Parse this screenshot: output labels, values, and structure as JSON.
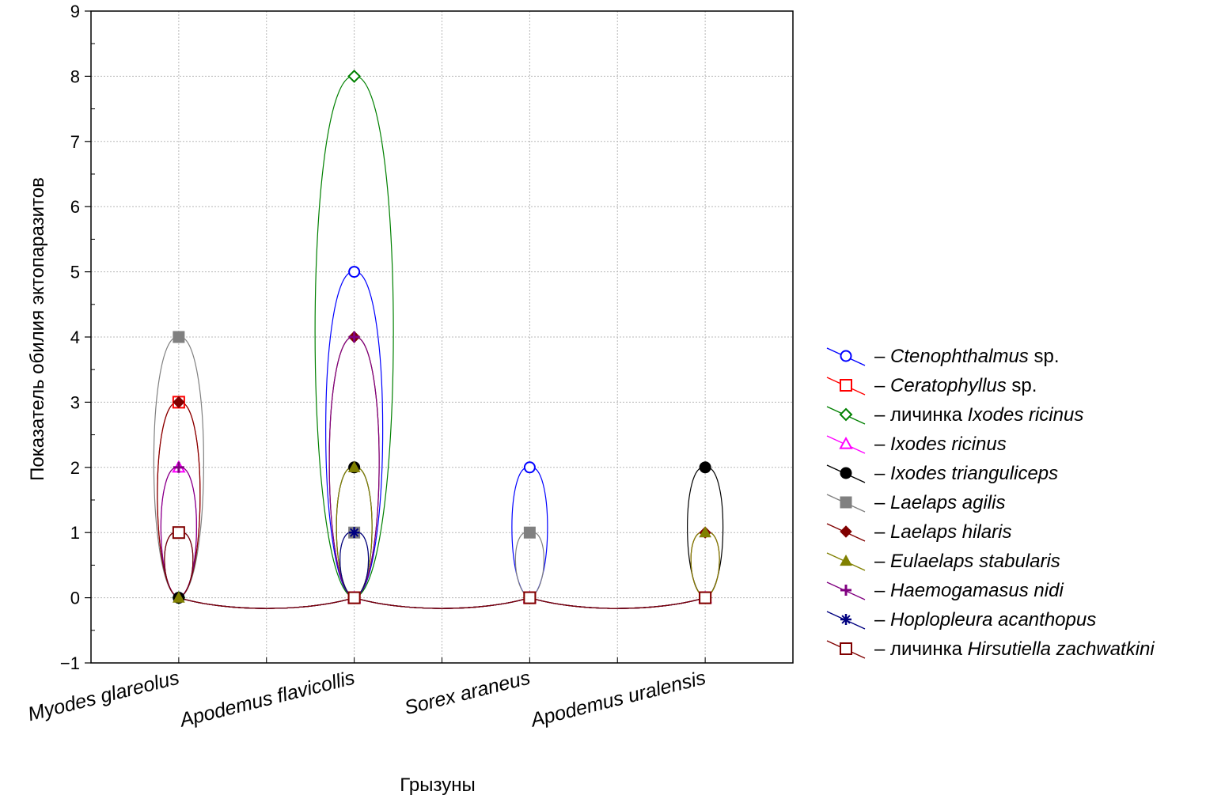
{
  "chart_data": {
    "type": "line",
    "xlabel": "Грызуны",
    "ylabel": "Показатель обилия эктопаразитов",
    "categories": [
      "Myodes glareolus",
      "Apodemus flavicollis",
      "Sorex araneus",
      "Apodemus uralensis"
    ],
    "ylim": [
      -1,
      9
    ],
    "yticks": [
      "−1",
      "0",
      "1",
      "2",
      "3",
      "4",
      "5",
      "6",
      "7",
      "8",
      "9"
    ],
    "grid": true,
    "legend_position": "right",
    "series": [
      {
        "prefix": "– ",
        "name": "Ctenophthalmus",
        "suffix": " sp.",
        "color": "#0000ff",
        "marker": "circle-open",
        "values": [
          0,
          5,
          2,
          0
        ]
      },
      {
        "prefix": "– ",
        "name": "Ceratophyllus",
        "suffix": " sp.",
        "color": "#ff0000",
        "marker": "square-open",
        "values": [
          3,
          0,
          0,
          0
        ]
      },
      {
        "prefix": "– личинка ",
        "name": "Ixodes ricinus",
        "suffix": "",
        "color": "#008000",
        "marker": "diamond-open",
        "values": [
          0,
          8,
          0,
          0
        ]
      },
      {
        "prefix": "– ",
        "name": "Ixodes ricinus",
        "suffix": "",
        "color": "#ff00ff",
        "marker": "triangle-open",
        "values": [
          2,
          0,
          0,
          0
        ]
      },
      {
        "prefix": "– ",
        "name": "Ixodes trianguliceps",
        "suffix": "",
        "color": "#000000",
        "marker": "circle-filled",
        "values": [
          0,
          2,
          0,
          2
        ]
      },
      {
        "prefix": "– ",
        "name": "Laelaps agilis",
        "suffix": "",
        "color": "#808080",
        "marker": "square-filled",
        "values": [
          4,
          1,
          1,
          0
        ]
      },
      {
        "prefix": "– ",
        "name": "Laelaps hilaris",
        "suffix": "",
        "color": "#800000",
        "marker": "diamond-filled",
        "values": [
          3,
          4,
          0,
          1
        ]
      },
      {
        "prefix": "– ",
        "name": "Eulaelaps stabularis",
        "suffix": "",
        "color": "#808000",
        "marker": "triangle-filled",
        "values": [
          0,
          2,
          0,
          1
        ]
      },
      {
        "prefix": "– ",
        "name": "Haemogamasus nidi",
        "suffix": "",
        "color": "#800080",
        "marker": "plus",
        "values": [
          2,
          4,
          0,
          0
        ]
      },
      {
        "prefix": "– ",
        "name": "Hoplopleura acanthopus",
        "suffix": "",
        "color": "#000080",
        "marker": "star",
        "values": [
          1,
          1,
          0,
          0
        ]
      },
      {
        "prefix": "– личинка ",
        "name": "Hirsutiella zachwatkini",
        "suffix": "",
        "color": "#800000",
        "marker": "square-open",
        "values": [
          1,
          0,
          0,
          0
        ]
      }
    ]
  }
}
